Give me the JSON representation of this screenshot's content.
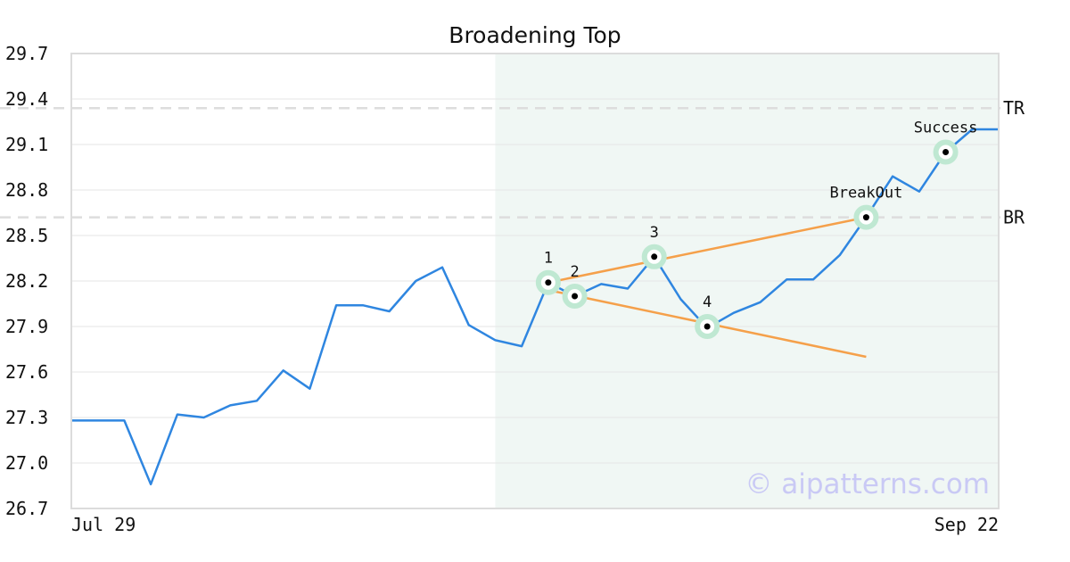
{
  "chart_data": {
    "type": "line",
    "title": "Broadening Top",
    "watermark": "© aipatterns.com",
    "xlabel": "",
    "ylabel": "",
    "x_tick_labels": [
      "Jul 29",
      "Sep 22"
    ],
    "y_ticks": [
      "26.7",
      "27.0",
      "27.3",
      "27.6",
      "27.9",
      "28.2",
      "28.5",
      "28.8",
      "29.1",
      "29.4",
      "29.7"
    ],
    "ylim": [
      26.7,
      29.7
    ],
    "grid": "horizontal",
    "series": [
      {
        "color": "#2f86e0",
        "values": [
          27.28,
          27.28,
          27.28,
          26.86,
          27.32,
          27.3,
          27.38,
          27.41,
          27.61,
          27.49,
          28.04,
          28.04,
          28.0,
          28.2,
          28.29,
          27.91,
          27.81,
          27.77,
          28.19,
          28.1,
          28.18,
          28.15,
          28.36,
          28.08,
          27.89,
          27.99,
          28.06,
          28.21,
          28.21,
          28.37,
          28.62,
          28.89,
          28.79,
          29.05,
          29.2,
          29.2
        ]
      }
    ],
    "highlight_region": {
      "x_start": 16,
      "x_end": 35,
      "color": "#f0f7f4"
    },
    "reference_lines": [
      {
        "label": "TR",
        "value": 29.34,
        "color": "#dddddd"
      },
      {
        "label": "BR",
        "value": 28.62,
        "color": "#dddddd"
      }
    ],
    "trend_lines": [
      {
        "from": [
          18,
          28.19
        ],
        "to": [
          30,
          28.62
        ],
        "color": "#f5a04a"
      },
      {
        "from": [
          18,
          28.14
        ],
        "to": [
          30,
          27.7
        ],
        "color": "#f5a04a"
      }
    ],
    "annotations": [
      {
        "label": "1",
        "x": 18,
        "y": 28.19
      },
      {
        "label": "2",
        "x": 19,
        "y": 28.1
      },
      {
        "label": "3",
        "x": 22,
        "y": 28.36
      },
      {
        "label": "4",
        "x": 24,
        "y": 27.9
      },
      {
        "label": "BreakOut",
        "x": 30,
        "y": 28.62
      },
      {
        "label": "Success",
        "x": 33,
        "y": 29.05
      }
    ]
  }
}
